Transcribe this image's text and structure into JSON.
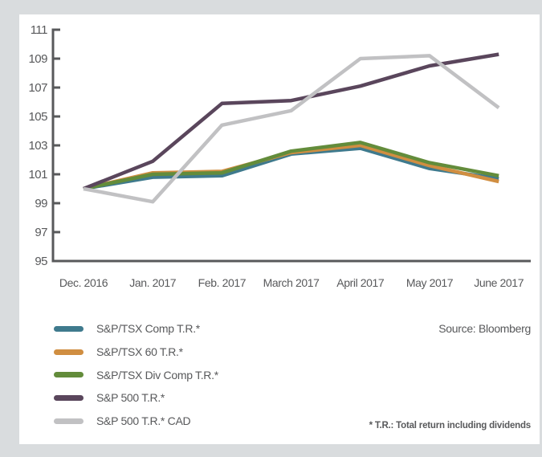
{
  "chart_data": {
    "type": "line",
    "title": "",
    "categories": [
      "Dec. 2016",
      "Jan. 2017",
      "Feb. 2017",
      "March 2017",
      "April 2017",
      "May 2017",
      "June 2017"
    ],
    "series": [
      {
        "name": "S&P/TSX Comp T.R.*",
        "color": "#3f7a8d",
        "values": [
          100,
          100.8,
          100.9,
          102.4,
          102.8,
          101.4,
          100.7
        ]
      },
      {
        "name": "S&P/TSX 60 T.R.*",
        "color": "#d08e41",
        "values": [
          100,
          101.1,
          101.2,
          102.5,
          103.0,
          101.6,
          100.5
        ]
      },
      {
        "name": "S&P/TSX Div Comp T.R.*",
        "color": "#638c3b",
        "values": [
          100,
          101.0,
          101.1,
          102.6,
          103.2,
          101.8,
          100.9
        ]
      },
      {
        "name": "S&P 500 T.R.*",
        "color": "#5a465c",
        "values": [
          100,
          101.9,
          105.9,
          106.1,
          107.1,
          108.5,
          109.3
        ]
      },
      {
        "name": "S&P 500 T.R.* CAD",
        "color": "#c1c1c3",
        "values": [
          100,
          99.1,
          104.4,
          105.4,
          109.0,
          109.2,
          105.6
        ]
      }
    ],
    "ylim": [
      95,
      111
    ],
    "ytick_step": 2,
    "grid": false,
    "legend_position": "bottom-left",
    "xlabel": "",
    "ylabel": "",
    "source": "Source: Bloomberg",
    "footnote": "* T.R.: Total return including dividends"
  },
  "colors": {
    "page_background": "#d9dcde",
    "card_background": "#ffffff",
    "axis": "#58595b",
    "text": "#58595b"
  }
}
